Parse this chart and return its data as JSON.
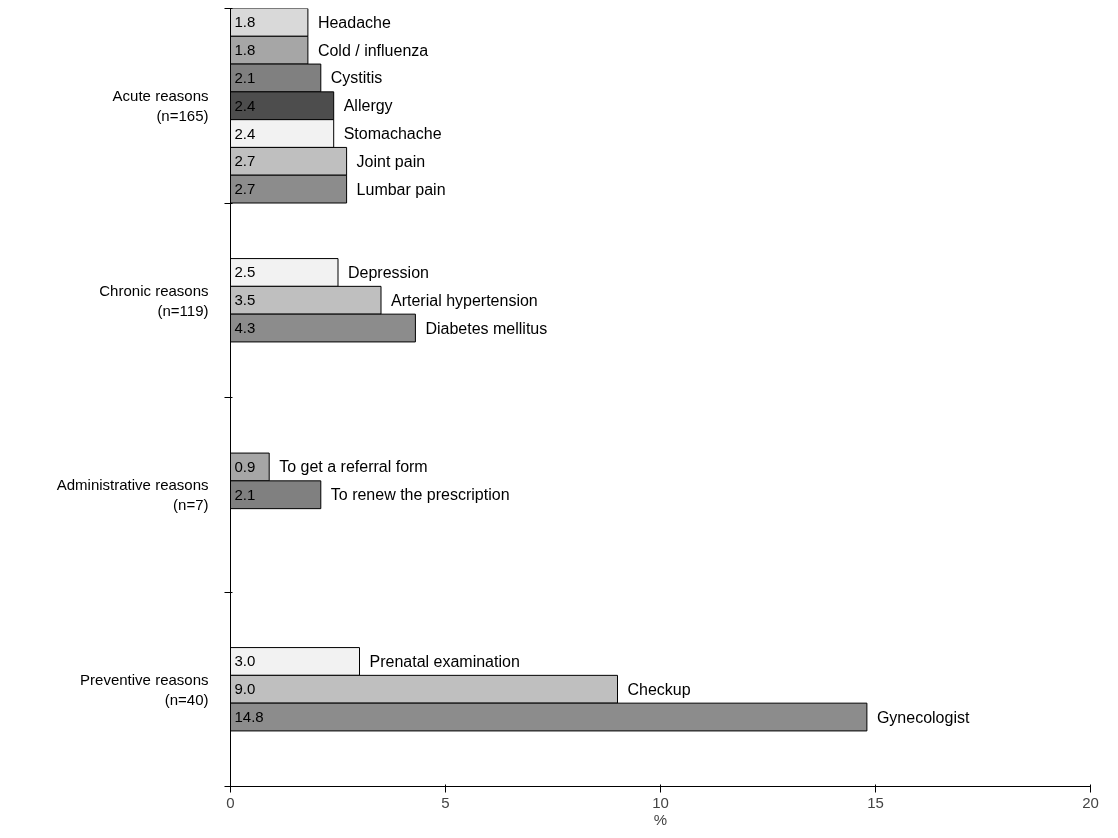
{
  "chart_data": {
    "type": "bar",
    "orientation": "horizontal",
    "xlabel": "%",
    "categories": [
      "Headache",
      "Cold / influenza",
      "Cystitis",
      "Allergy",
      "Stomachache",
      "Joint pain",
      "Lumbar pain",
      null,
      null,
      "Depression",
      "Arterial hypertension",
      "Diabetes mellitus",
      null,
      null,
      null,
      null,
      "To get a referral form",
      "To renew the prescription",
      null,
      null,
      null,
      null,
      null,
      "Prenatal examination",
      "Checkup",
      "Gynecologist",
      null,
      null
    ],
    "values": [
      1.8,
      1.8,
      2.1,
      2.4,
      2.4,
      2.7,
      2.7,
      null,
      null,
      2.5,
      3.5,
      4.3,
      null,
      null,
      null,
      null,
      0.9,
      2.1,
      null,
      null,
      null,
      null,
      null,
      3.0,
      9.0,
      14.8,
      null,
      null
    ],
    "colors": [
      "#d9d9d9",
      "#a6a6a6",
      "#808080",
      "#4d4d4d",
      "#f2f2f2",
      "#bfbfbf",
      "#8c8c8c",
      null,
      null,
      "#f2f2f2",
      "#bfbfbf",
      "#8c8c8c",
      null,
      null,
      null,
      null,
      "#a6a6a6",
      "#808080",
      null,
      null,
      null,
      null,
      null,
      "#f2f2f2",
      "#bfbfbf",
      "#8c8c8c",
      null,
      null
    ],
    "annotations": [
      "Acute reasons\n(n=165)",
      "Chronic reasons\n(n=119)",
      "Administrative reasons\n(n=7)",
      "Preventive reasons\n(n=40)"
    ],
    "xlim": [
      0,
      20
    ],
    "xticks": [
      0,
      5,
      10,
      15,
      20
    ],
    "value_labels": [
      "1.8",
      "1.8",
      "2.1",
      "2.4",
      "2.4",
      "2.7",
      "2.7",
      null,
      null,
      "2.5",
      "3.5",
      "4.3",
      null,
      null,
      null,
      null,
      "0.9",
      "2.1",
      null,
      null,
      null,
      null,
      null,
      "3.0",
      "9.0",
      "14.8",
      null,
      null
    ],
    "grid": false
  }
}
